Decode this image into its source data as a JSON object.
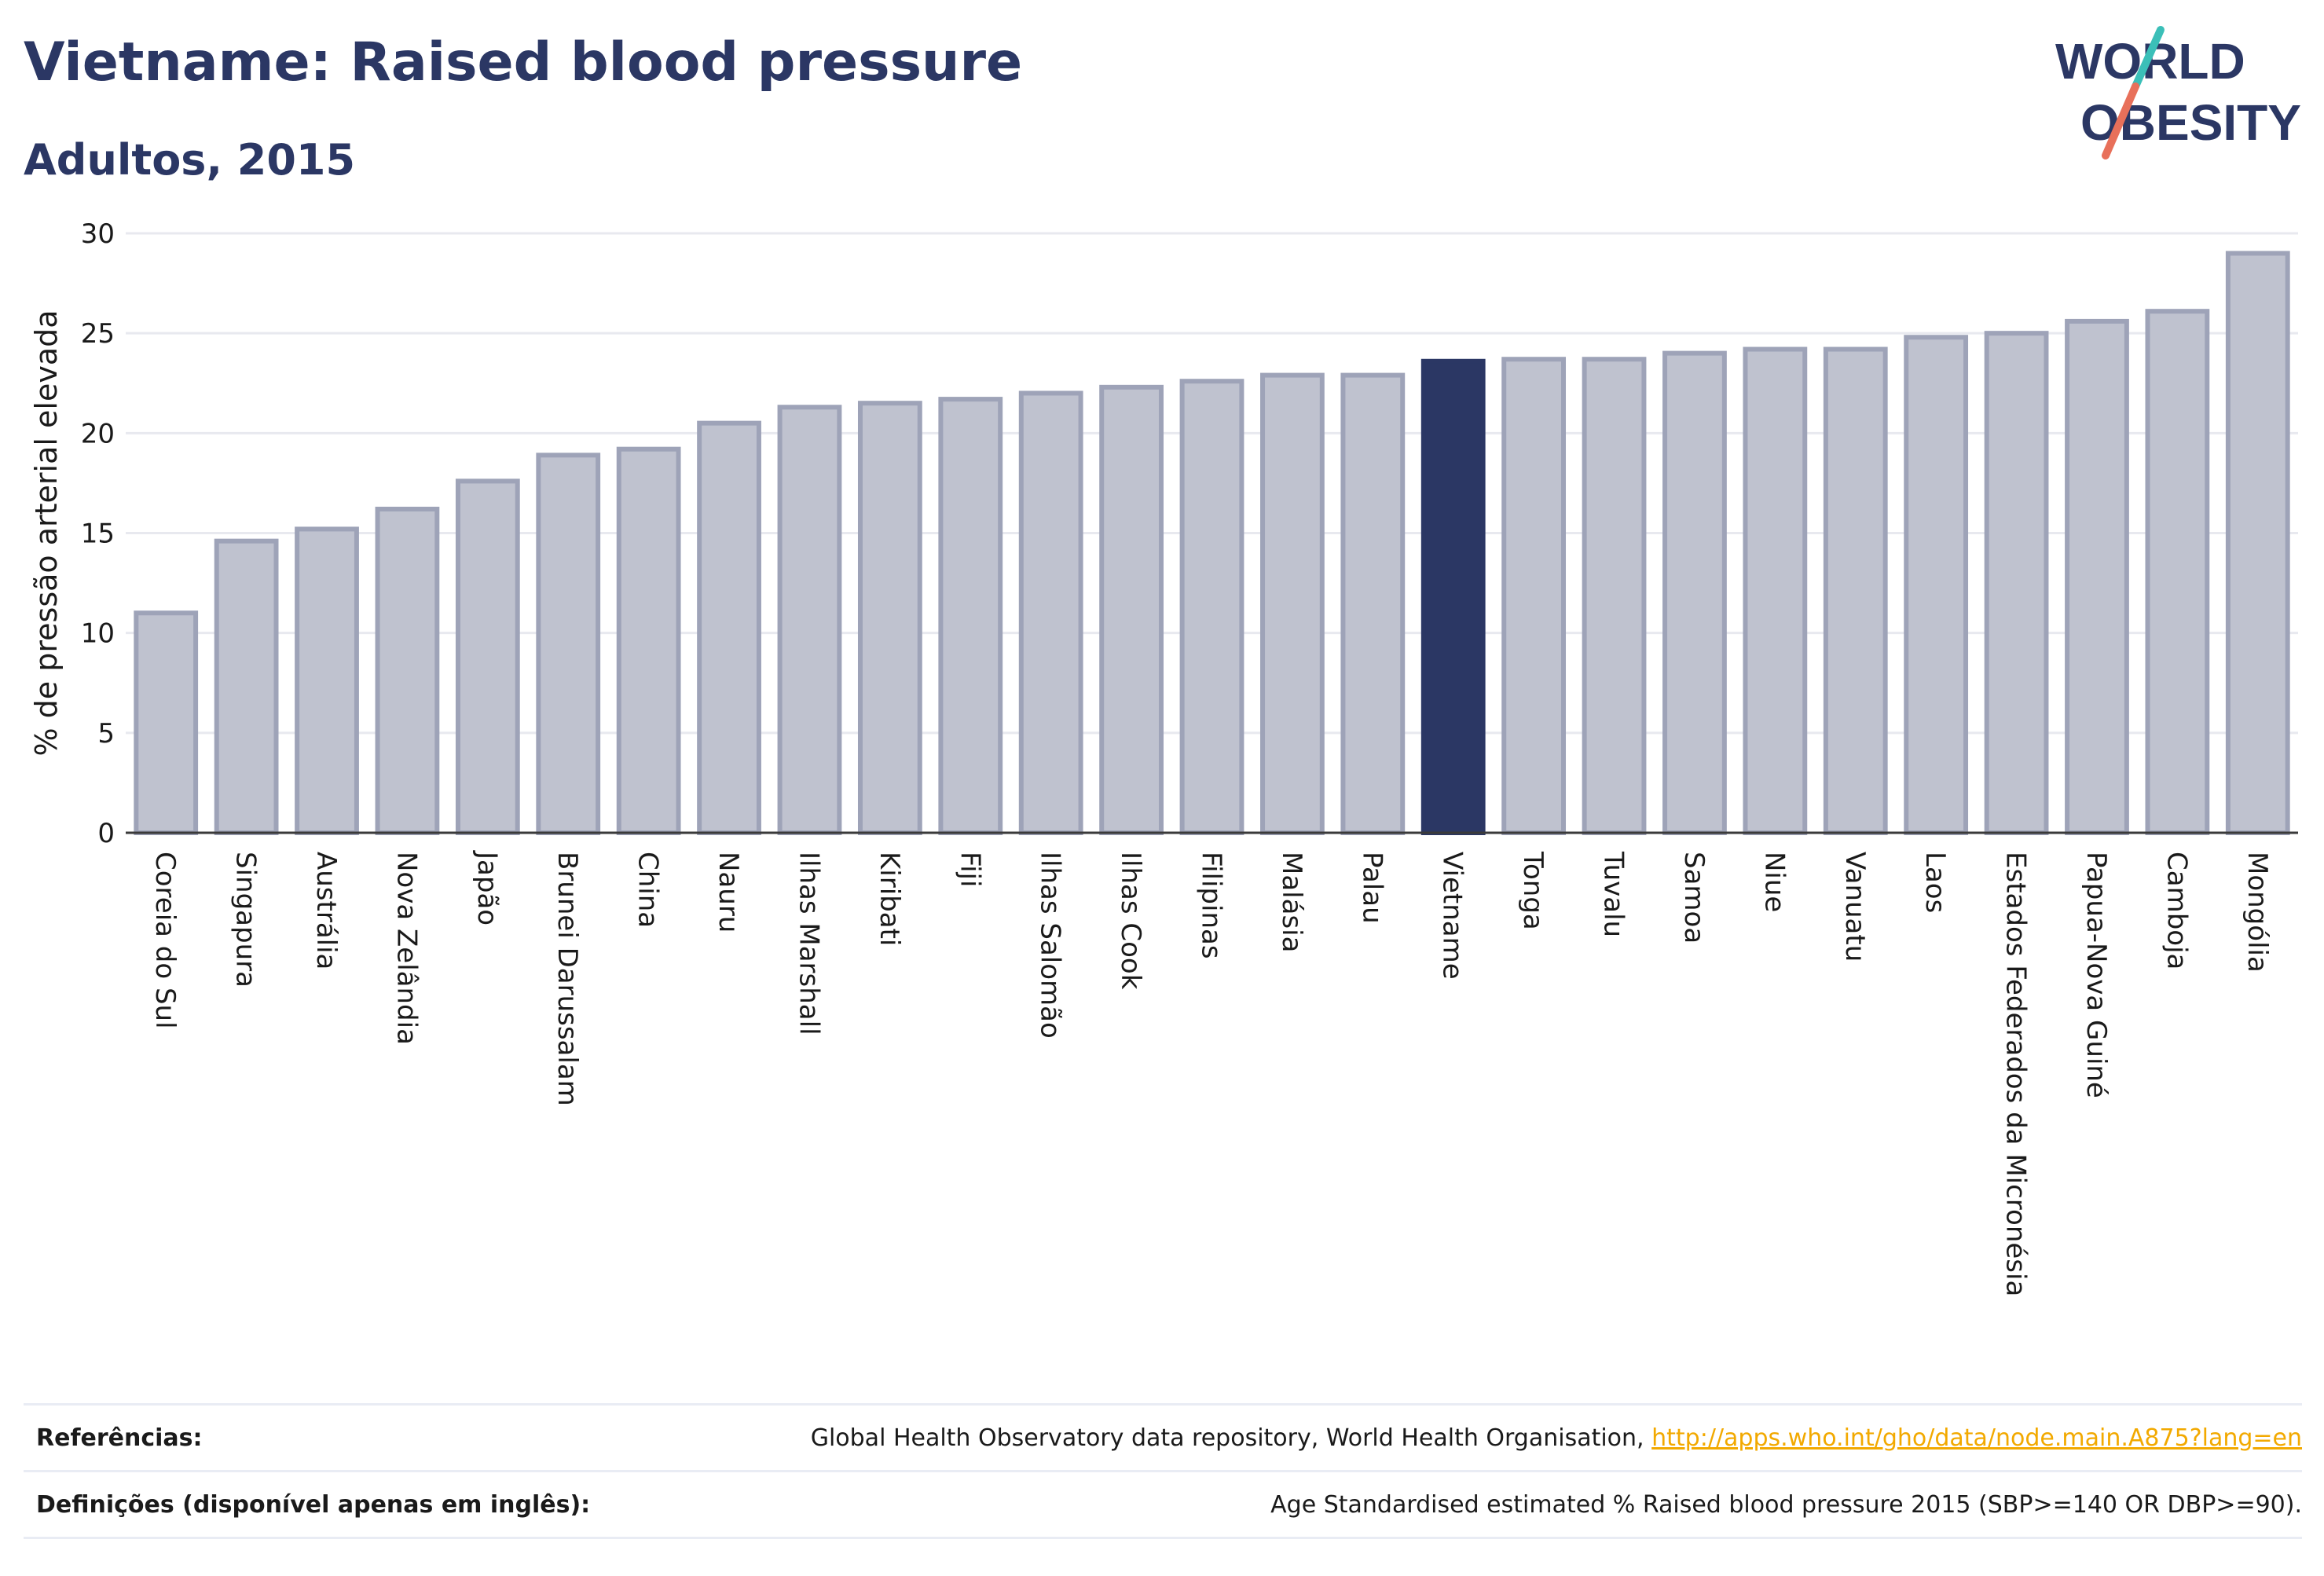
{
  "header": {
    "title": "Vietname: Raised blood pressure",
    "subtitle": "Adultos, 2015"
  },
  "logo": {
    "line1": "WORLD",
    "line2": "OBESITY"
  },
  "colors": {
    "highlight": "#2b3764",
    "bar": "#bfc2cf",
    "bar_border": "#9ea3b8",
    "grid": "#e8e9ef",
    "logo_text": "#2b3764",
    "logo_slash_top": "#3bbfb8",
    "logo_slash_bottom": "#e8705a",
    "link": "#f2a900"
  },
  "chart_data": {
    "type": "bar",
    "title": "",
    "xlabel": "",
    "ylabel": "% de pressão arterial elevada",
    "ylim": [
      0,
      30
    ],
    "yticks": [
      0,
      5,
      10,
      15,
      20,
      25,
      30
    ],
    "grid": true,
    "highlight_category": "Vietname",
    "categories": [
      "Coreia do Sul",
      "Singapura",
      "Austrália",
      "Nova Zelândia",
      "Japão",
      "Brunei Darussalam",
      "China",
      "Nauru",
      "Ilhas Marshall",
      "Kiribati",
      "Fiji",
      "Ilhas Salomão",
      "Ilhas Cook",
      "Filipinas",
      "Malásia",
      "Palau",
      "Vietname",
      "Tonga",
      "Tuvalu",
      "Samoa",
      "Niue",
      "Vanuatu",
      "Laos",
      "Estados Federados da Micronésia",
      "Papua-Nova Guiné",
      "Camboja",
      "Mongólia"
    ],
    "values": [
      11.0,
      14.6,
      15.2,
      16.2,
      17.6,
      18.9,
      19.2,
      20.5,
      21.3,
      21.5,
      21.7,
      22.0,
      22.3,
      22.6,
      22.9,
      22.9,
      23.6,
      23.7,
      23.7,
      24.0,
      24.2,
      24.2,
      24.8,
      25.0,
      25.6,
      26.1,
      29.0
    ]
  },
  "references": [
    {
      "label": "Referências:",
      "text": "Global Health Observatory data repository, World Health Organisation,",
      "link": "http://apps.who.int/gho/data/node.main.A875?lang=en"
    },
    {
      "label": "Definições (disponível apenas em inglês):",
      "text": "Age Standardised estimated % Raised blood pressure 2015 (SBP>=140 OR DBP>=90).",
      "link": ""
    }
  ]
}
